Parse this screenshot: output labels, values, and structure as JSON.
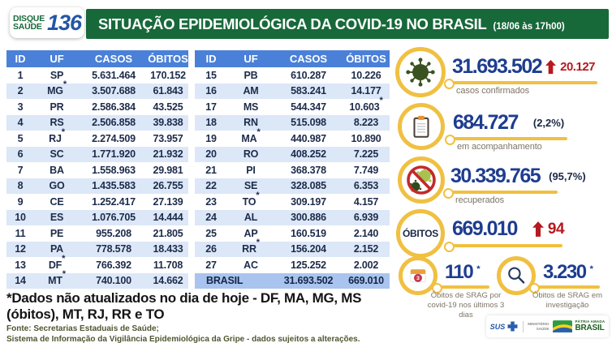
{
  "header": {
    "badge": {
      "line1": "DISQUE",
      "line2": "SAÚDE",
      "number": "136"
    },
    "title": "SITUAÇÃO EPIDEMIOLÓGICA DA COVID-19 NO BRASIL",
    "timestamp": "(18/06 às 17h00)"
  },
  "table": {
    "columns": {
      "id": "ID",
      "uf": "UF",
      "casos": "CASOS",
      "obitos": "ÓBITOS"
    },
    "left_rows": [
      {
        "id": "1",
        "uf": "SP",
        "uf_ast": "",
        "casos": "5.631.464",
        "obitos": "170.152",
        "obitos_ast": ""
      },
      {
        "id": "2",
        "uf": "MG",
        "uf_ast": "*",
        "casos": "3.507.688",
        "obitos": "61.843",
        "obitos_ast": ""
      },
      {
        "id": "3",
        "uf": "PR",
        "uf_ast": "",
        "casos": "2.586.384",
        "obitos": "43.525",
        "obitos_ast": ""
      },
      {
        "id": "4",
        "uf": "RS",
        "uf_ast": "",
        "casos": "2.506.858",
        "obitos": "39.838",
        "obitos_ast": ""
      },
      {
        "id": "5",
        "uf": "RJ",
        "uf_ast": "*",
        "casos": "2.274.509",
        "obitos": "73.957",
        "obitos_ast": ""
      },
      {
        "id": "6",
        "uf": "SC",
        "uf_ast": "",
        "casos": "1.771.920",
        "obitos": "21.932",
        "obitos_ast": ""
      },
      {
        "id": "7",
        "uf": "BA",
        "uf_ast": "",
        "casos": "1.558.963",
        "obitos": "29.981",
        "obitos_ast": ""
      },
      {
        "id": "8",
        "uf": "GO",
        "uf_ast": "",
        "casos": "1.435.583",
        "obitos": "26.755",
        "obitos_ast": ""
      },
      {
        "id": "9",
        "uf": "CE",
        "uf_ast": "",
        "casos": "1.252.417",
        "obitos": "27.139",
        "obitos_ast": ""
      },
      {
        "id": "10",
        "uf": "ES",
        "uf_ast": "",
        "casos": "1.076.705",
        "obitos": "14.444",
        "obitos_ast": ""
      },
      {
        "id": "11",
        "uf": "PE",
        "uf_ast": "",
        "casos": "955.208",
        "obitos": "21.805",
        "obitos_ast": ""
      },
      {
        "id": "12",
        "uf": "PA",
        "uf_ast": "",
        "casos": "778.578",
        "obitos": "18.433",
        "obitos_ast": ""
      },
      {
        "id": "13",
        "uf": "DF",
        "uf_ast": "*",
        "casos": "766.392",
        "obitos": "11.708",
        "obitos_ast": ""
      },
      {
        "id": "14",
        "uf": "MT",
        "uf_ast": "*",
        "casos": "740.100",
        "obitos": "14.662",
        "obitos_ast": ""
      }
    ],
    "right_rows": [
      {
        "id": "15",
        "uf": "PB",
        "uf_ast": "",
        "casos": "610.287",
        "obitos": "10.226",
        "obitos_ast": ""
      },
      {
        "id": "16",
        "uf": "AM",
        "uf_ast": "",
        "casos": "583.241",
        "obitos": "14.177",
        "obitos_ast": ""
      },
      {
        "id": "17",
        "uf": "MS",
        "uf_ast": "",
        "casos": "544.347",
        "obitos": "10.603",
        "obitos_ast": "*"
      },
      {
        "id": "18",
        "uf": "RN",
        "uf_ast": "",
        "casos": "515.098",
        "obitos": "8.223",
        "obitos_ast": ""
      },
      {
        "id": "19",
        "uf": "MA",
        "uf_ast": "*",
        "casos": "440.987",
        "obitos": "10.890",
        "obitos_ast": ""
      },
      {
        "id": "20",
        "uf": "RO",
        "uf_ast": "",
        "casos": "408.252",
        "obitos": "7.225",
        "obitos_ast": ""
      },
      {
        "id": "21",
        "uf": "PI",
        "uf_ast": "",
        "casos": "368.378",
        "obitos": "7.749",
        "obitos_ast": ""
      },
      {
        "id": "22",
        "uf": "SE",
        "uf_ast": "",
        "casos": "328.085",
        "obitos": "6.353",
        "obitos_ast": ""
      },
      {
        "id": "23",
        "uf": "TO",
        "uf_ast": "*",
        "casos": "309.197",
        "obitos": "4.157",
        "obitos_ast": ""
      },
      {
        "id": "24",
        "uf": "AL",
        "uf_ast": "",
        "casos": "300.886",
        "obitos": "6.939",
        "obitos_ast": ""
      },
      {
        "id": "25",
        "uf": "AP",
        "uf_ast": "",
        "casos": "160.519",
        "obitos": "2.140",
        "obitos_ast": ""
      },
      {
        "id": "26",
        "uf": "RR",
        "uf_ast": "*",
        "casos": "156.204",
        "obitos": "2.152",
        "obitos_ast": ""
      },
      {
        "id": "27",
        "uf": "AC",
        "uf_ast": "",
        "casos": "125.252",
        "obitos": "2.002",
        "obitos_ast": ""
      }
    ],
    "total": {
      "label": "BRASIL",
      "casos": "31.693.502",
      "obitos": "669.010"
    }
  },
  "stats": {
    "confirmed": {
      "icon": "virus-icon",
      "value": "31.693.502",
      "delta": "20.127",
      "label": "casos confirmados"
    },
    "monitoring": {
      "icon": "clipboard-icon",
      "value": "684.727",
      "percent": "(2,2%)",
      "label": "em acompanhamento"
    },
    "recovered": {
      "icon": "no-virus-icon",
      "value": "30.339.765",
      "percent": "(95,7%)",
      "label": "recuperados"
    },
    "deaths": {
      "circle_label": "ÓBITOS",
      "value": "669.010",
      "delta": "94"
    },
    "srag_deaths": {
      "icon": "calendar-icon",
      "icon_badge": "3",
      "value": "110",
      "asterisk": "*",
      "label": "Óbitos de SRAG por covid-19 nos últimos 3 dias"
    },
    "srag_investigation": {
      "icon": "search-icon",
      "value": "3.230",
      "asterisk": "*",
      "label": "Óbitos de SRAG em investigação"
    }
  },
  "footnote": {
    "note": "*Dados não atualizados no dia de hoje - DF, MA, MG, MS (óbitos), MT, RJ, RR e TO",
    "source1": "Fonte: Secretarias Estaduais de Saúde;",
    "source2": "Sistema de Informação da Vigilância Epidemiológica da Gripe - dados sujeitos a alterações."
  },
  "logos": {
    "sus": "SUS",
    "ministry_line1": "MINISTÉRIO",
    "ministry_line2": "SAÚDE",
    "patria_line1": "PÁTRIA AMADA",
    "patria_line2": "BRASIL"
  },
  "colors": {
    "banner_green": "#17693a",
    "table_header_blue": "#4a80d8",
    "row_alt_blue": "#dce7f7",
    "total_row_blue": "#a9c4ee",
    "number_blue": "#1e3d90",
    "delta_red": "#b6191f",
    "accent_yellow": "#f0c042"
  }
}
